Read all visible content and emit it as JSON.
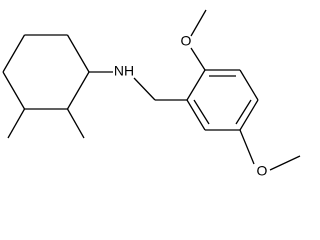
{
  "atoms": [
    {
      "label": "NH"
    },
    {
      "label": "O"
    },
    {
      "label": "O"
    }
  ]
}
